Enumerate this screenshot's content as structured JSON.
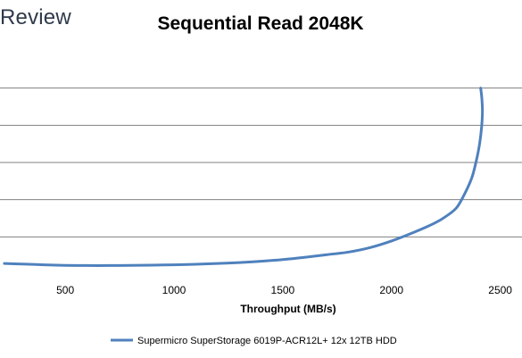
{
  "brand": {
    "text": "Review"
  },
  "chart_data": {
    "type": "line",
    "title": "Sequential Read 2048K",
    "xlabel": "Throughput (MB/s)",
    "ylabel": "",
    "xlim": [
      200,
      2600
    ],
    "ylim": [
      0,
      120
    ],
    "x_ticks": [
      500,
      1000,
      1500,
      2000,
      2500
    ],
    "y_gridlines": [
      20,
      40,
      60,
      80,
      100
    ],
    "y_ticklabels_visible": false,
    "grid": "horizontal",
    "legend_position": "bottom",
    "colors": {
      "series": "#4f81bd",
      "grid": "#808080",
      "brand": "#2e3a4b"
    },
    "series": [
      {
        "name": "Supermicro SuperStorage 6019P-ACR12L+ 12x 12TB HDD",
        "x": [
          220,
          300,
          400,
          500,
          600,
          700,
          800,
          900,
          1000,
          1100,
          1200,
          1300,
          1400,
          1500,
          1600,
          1700,
          1800,
          1900,
          2000,
          2100,
          2200,
          2250,
          2300,
          2340,
          2370,
          2390,
          2405,
          2415,
          2418,
          2415,
          2410
        ],
        "y": [
          5.7,
          5.4,
          5.0,
          4.7,
          4.6,
          4.6,
          4.7,
          4.8,
          5.0,
          5.3,
          5.7,
          6.2,
          6.9,
          7.8,
          9.0,
          10.4,
          11.8,
          14.2,
          17.8,
          22.3,
          27.5,
          31.0,
          35.8,
          44.0,
          52.0,
          61.0,
          70.0,
          80.0,
          88.0,
          95.0,
          100.0
        ]
      }
    ]
  }
}
